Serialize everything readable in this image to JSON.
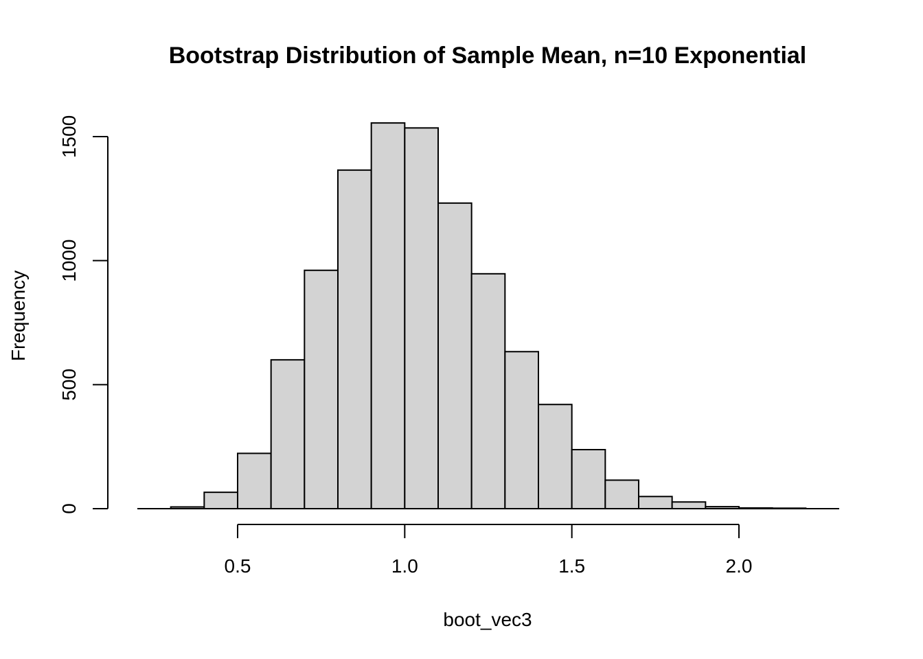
{
  "chart_data": {
    "type": "bar",
    "title": "Bootstrap Distribution of Sample Mean, n=10 Exponential",
    "xlabel": "boot_vec3",
    "ylabel": "Frequency",
    "xlim": [
      0.2,
      2.3
    ],
    "ylim": [
      0,
      1550
    ],
    "xticks": [
      0.5,
      1.0,
      1.5,
      2.0
    ],
    "xtick_labels": [
      "0.5",
      "1.0",
      "1.5",
      "2.0"
    ],
    "yticks": [
      0,
      500,
      1000,
      1500
    ],
    "ytick_labels": [
      "0",
      "500",
      "1000",
      "1500"
    ],
    "bar_fill": "#d3d3d3",
    "bar_stroke": "#000000",
    "grid": false,
    "bins": [
      {
        "start": 0.3,
        "end": 0.4,
        "value": 7
      },
      {
        "start": 0.4,
        "end": 0.5,
        "value": 66
      },
      {
        "start": 0.5,
        "end": 0.6,
        "value": 223
      },
      {
        "start": 0.6,
        "end": 0.7,
        "value": 600
      },
      {
        "start": 0.7,
        "end": 0.8,
        "value": 961
      },
      {
        "start": 0.8,
        "end": 0.9,
        "value": 1365
      },
      {
        "start": 0.9,
        "end": 1.0,
        "value": 1555
      },
      {
        "start": 1.0,
        "end": 1.1,
        "value": 1535
      },
      {
        "start": 1.1,
        "end": 1.2,
        "value": 1232
      },
      {
        "start": 1.2,
        "end": 1.3,
        "value": 947
      },
      {
        "start": 1.3,
        "end": 1.4,
        "value": 633
      },
      {
        "start": 1.4,
        "end": 1.5,
        "value": 420
      },
      {
        "start": 1.5,
        "end": 1.6,
        "value": 238
      },
      {
        "start": 1.6,
        "end": 1.7,
        "value": 115
      },
      {
        "start": 1.7,
        "end": 1.8,
        "value": 49
      },
      {
        "start": 1.8,
        "end": 1.9,
        "value": 27
      },
      {
        "start": 1.9,
        "end": 2.0,
        "value": 8
      },
      {
        "start": 2.0,
        "end": 2.1,
        "value": 3
      },
      {
        "start": 2.1,
        "end": 2.2,
        "value": 2
      }
    ]
  }
}
